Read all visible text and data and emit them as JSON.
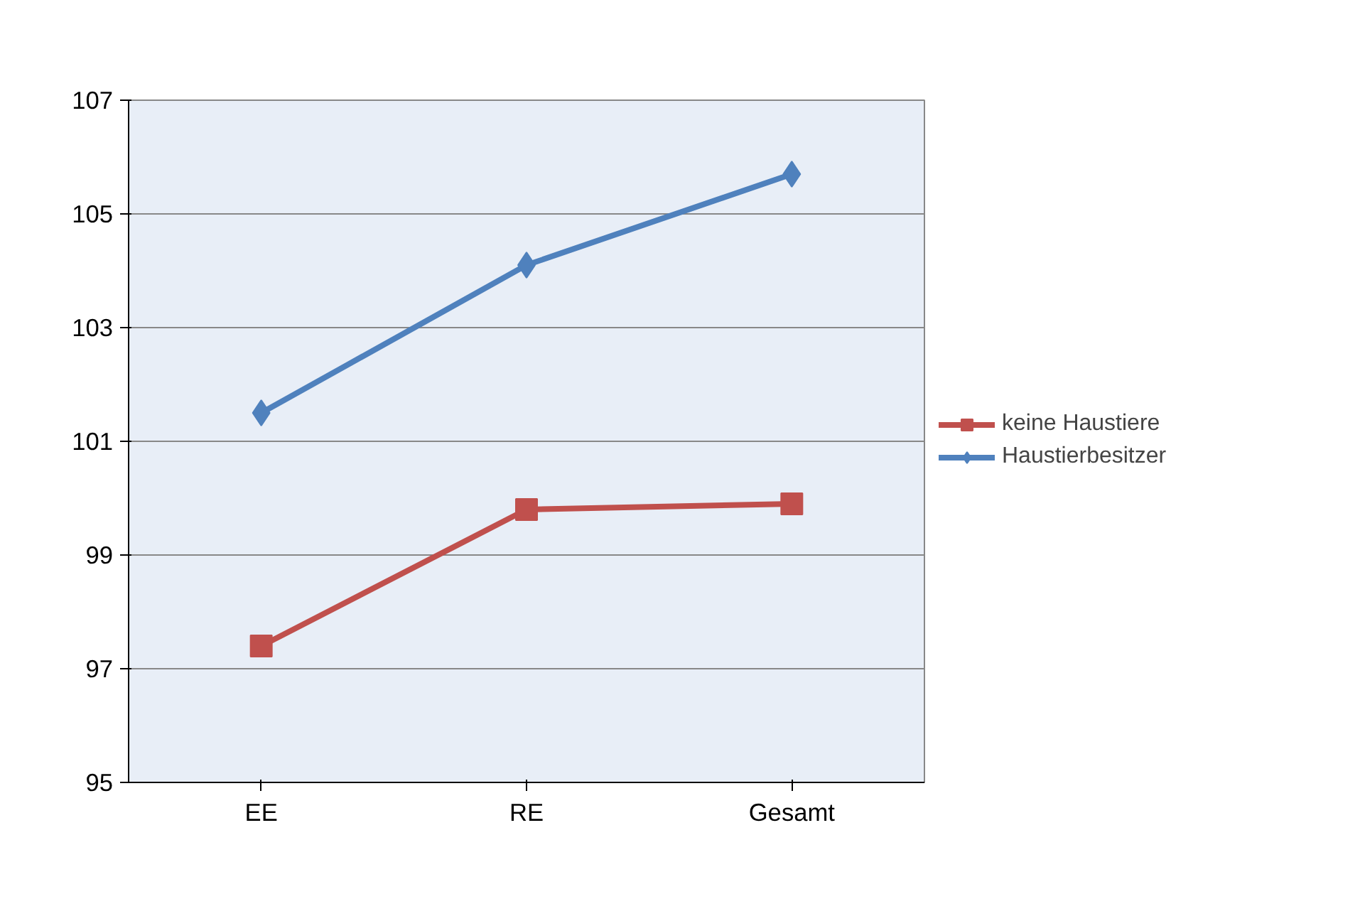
{
  "chart_data": {
    "type": "line",
    "categories": [
      "EE",
      "RE",
      "Gesamt"
    ],
    "series": [
      {
        "name": "keine Haustiere",
        "color": "#c0504d",
        "marker": "square",
        "values": [
          97.4,
          99.8,
          99.9
        ]
      },
      {
        "name": "Haustierbesitzer",
        "color": "#4f81bd",
        "marker": "diamond",
        "values": [
          101.5,
          104.1,
          105.7
        ]
      }
    ],
    "ylim": [
      95,
      107
    ],
    "yticks": [
      95,
      97,
      99,
      101,
      103,
      105,
      107
    ],
    "grid": "y",
    "legend": "right"
  }
}
